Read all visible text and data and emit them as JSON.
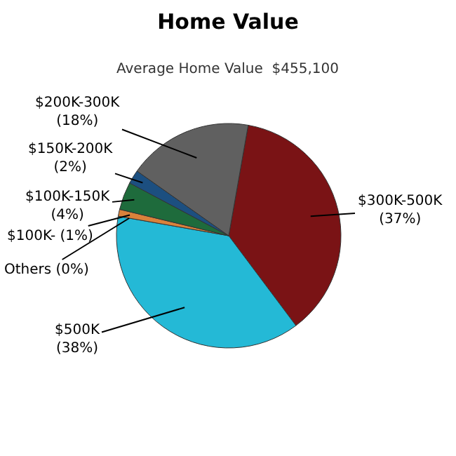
{
  "chart_data": {
    "type": "pie",
    "title": "Home Value",
    "subtitle": "Average Home Value  $455,100",
    "categories": [
      "$300K-500K",
      "$500K",
      "Others",
      "$100K-",
      "$100K-150K",
      "$150K-200K",
      "$200K-300K"
    ],
    "values": [
      37,
      38,
      0,
      1,
      4,
      2,
      18
    ],
    "colors": [
      "#7a1315",
      "#24b9d6",
      "#8a8a8a",
      "#d9823b",
      "#1e6b3c",
      "#1c4f80",
      "#606060"
    ],
    "value_labels": [
      "(37%)",
      "(38%)",
      "(0%)",
      "(1%)",
      "(4%)",
      "(2%)",
      "(18%)"
    ],
    "legend": false
  }
}
